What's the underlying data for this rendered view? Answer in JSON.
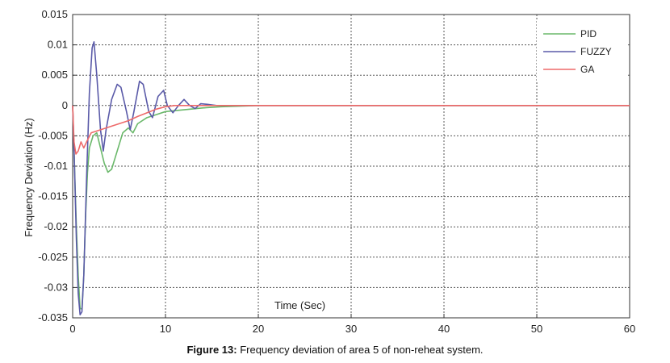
{
  "chart_data": {
    "type": "line",
    "title": "",
    "xlabel": "Time (Sec)",
    "ylabel": "Frequency Deviation (Hz)",
    "xlim": [
      0,
      60
    ],
    "ylim": [
      -0.035,
      0.015
    ],
    "x_ticks": [
      "0",
      "10",
      "20",
      "30",
      "40",
      "50",
      "60"
    ],
    "y_ticks": [
      "0.015",
      "0.01",
      "0.005",
      "0",
      "-0.005",
      "-0.01",
      "-0.015",
      "-0.02",
      "-0.025",
      "-0.03",
      "-0.035"
    ],
    "grid": true,
    "legend_position": "top-right",
    "series": [
      {
        "name": "PID",
        "color": "#6ab86a",
        "points": [
          [
            0,
            0
          ],
          [
            0.2,
            -0.01
          ],
          [
            0.4,
            -0.02
          ],
          [
            0.6,
            -0.028
          ],
          [
            0.8,
            -0.0335
          ],
          [
            1.0,
            -0.0335
          ],
          [
            1.2,
            -0.028
          ],
          [
            1.4,
            -0.018
          ],
          [
            1.6,
            -0.011
          ],
          [
            1.8,
            -0.007
          ],
          [
            2.2,
            -0.005
          ],
          [
            2.6,
            -0.0045
          ],
          [
            3.0,
            -0.007
          ],
          [
            3.4,
            -0.0095
          ],
          [
            3.8,
            -0.011
          ],
          [
            4.2,
            -0.0105
          ],
          [
            4.8,
            -0.0075
          ],
          [
            5.4,
            -0.0045
          ],
          [
            6.0,
            -0.0037
          ],
          [
            6.5,
            -0.0045
          ],
          [
            7.0,
            -0.003
          ],
          [
            8.0,
            -0.002
          ],
          [
            9.0,
            -0.0015
          ],
          [
            10,
            -0.001
          ],
          [
            12,
            -0.0007
          ],
          [
            14,
            -0.0004
          ],
          [
            16,
            -0.0002
          ],
          [
            18,
            -0.0001
          ],
          [
            20,
            0
          ],
          [
            60,
            0
          ]
        ]
      },
      {
        "name": "FUZZY",
        "color": "#5a5aa8",
        "points": [
          [
            0,
            0
          ],
          [
            0.2,
            -0.01
          ],
          [
            0.4,
            -0.022
          ],
          [
            0.6,
            -0.031
          ],
          [
            0.8,
            -0.0345
          ],
          [
            1.0,
            -0.034
          ],
          [
            1.2,
            -0.028
          ],
          [
            1.5,
            -0.012
          ],
          [
            1.8,
            0.002
          ],
          [
            2.1,
            0.0095
          ],
          [
            2.3,
            0.0105
          ],
          [
            2.6,
            0.005
          ],
          [
            3.0,
            -0.004
          ],
          [
            3.3,
            -0.0075
          ],
          [
            3.6,
            -0.004
          ],
          [
            4.2,
            0.001
          ],
          [
            4.8,
            0.0035
          ],
          [
            5.2,
            0.003
          ],
          [
            5.8,
            -0.001
          ],
          [
            6.2,
            -0.004
          ],
          [
            6.6,
            -0.001
          ],
          [
            7.2,
            0.004
          ],
          [
            7.6,
            0.0035
          ],
          [
            8.2,
            -0.001
          ],
          [
            8.6,
            -0.002
          ],
          [
            9.2,
            0.0015
          ],
          [
            9.8,
            0.0025
          ],
          [
            10.2,
            0
          ],
          [
            10.8,
            -0.0012
          ],
          [
            11.4,
            0
          ],
          [
            12,
            0.001
          ],
          [
            12.6,
            0
          ],
          [
            13.2,
            -0.0005
          ],
          [
            13.8,
            0.0003
          ],
          [
            14.5,
            0.0002
          ],
          [
            15.5,
            0
          ],
          [
            17,
            0
          ],
          [
            60,
            0
          ]
        ]
      },
      {
        "name": "GA",
        "color": "#ee6a6a",
        "points": [
          [
            0,
            0
          ],
          [
            0.15,
            -0.006
          ],
          [
            0.35,
            -0.008
          ],
          [
            0.6,
            -0.0075
          ],
          [
            0.9,
            -0.006
          ],
          [
            1.2,
            -0.007
          ],
          [
            1.5,
            -0.006
          ],
          [
            2.0,
            -0.0045
          ],
          [
            3,
            -0.004
          ],
          [
            4,
            -0.0035
          ],
          [
            5,
            -0.003
          ],
          [
            6,
            -0.0025
          ],
          [
            7,
            -0.0018
          ],
          [
            8,
            -0.0012
          ],
          [
            9,
            -0.0006
          ],
          [
            10,
            -0.0002
          ],
          [
            11,
            0
          ],
          [
            60,
            0
          ]
        ]
      }
    ]
  },
  "caption": {
    "label": "Figure 13:",
    "text": " Frequency deviation of area 5 of non-reheat system."
  }
}
